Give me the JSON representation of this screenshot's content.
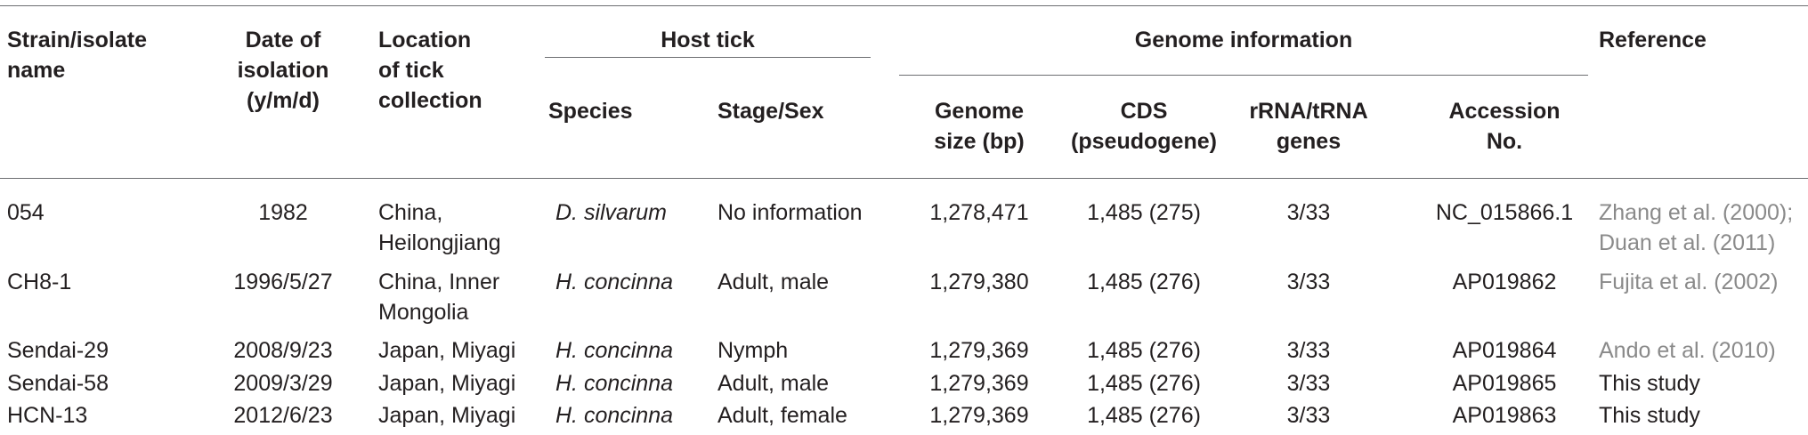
{
  "headers": {
    "strain": [
      "Strain/isolate",
      "name"
    ],
    "date": [
      "Date of",
      "isolation",
      "(y/m/d)"
    ],
    "location": [
      "Location",
      "of tick",
      "collection"
    ],
    "host_tick": "Host tick",
    "species": "Species",
    "stage": "Stage/Sex",
    "genome_info": "Genome information",
    "genome_size": [
      "Genome",
      "size (bp)"
    ],
    "cds": [
      "CDS",
      "(pseudogene)"
    ],
    "rrna": [
      "rRNA/tRNA",
      "genes"
    ],
    "accession": [
      "Accession",
      "No."
    ],
    "reference": "Reference"
  },
  "rows": [
    {
      "strain": "054",
      "date": "1982",
      "location": [
        "China,",
        "Heilongjiang"
      ],
      "species": "D. silvarum",
      "stage": "No information",
      "genome_size": "1,278,471",
      "cds": "1,485 (275)",
      "rrna": "3/33",
      "accession": "NC_015866.1",
      "reference": [
        "Zhang et al. (2000);",
        "Duan et al. (2011)"
      ]
    },
    {
      "strain": "CH8-1",
      "date": "1996/5/27",
      "location": [
        "China, Inner",
        "Mongolia"
      ],
      "species": "H. concinna",
      "stage": "Adult, male",
      "genome_size": "1,279,380",
      "cds": "1,485 (276)",
      "rrna": "3/33",
      "accession": "AP019862",
      "reference": [
        "Fujita et al. (2002)"
      ]
    },
    {
      "strain": "Sendai-29",
      "date": "2008/9/23",
      "location": [
        "Japan, Miyagi"
      ],
      "species": "H. concinna",
      "stage": "Nymph",
      "genome_size": "1,279,369",
      "cds": "1,485 (276)",
      "rrna": "3/33",
      "accession": "AP019864",
      "reference": [
        "Ando et al. (2010)"
      ]
    },
    {
      "strain": "Sendai-58",
      "date": "2009/3/29",
      "location": [
        "Japan, Miyagi"
      ],
      "species": "H. concinna",
      "stage": "Adult, male",
      "genome_size": "1,279,369",
      "cds": "1,485 (276)",
      "rrna": "3/33",
      "accession": "AP019865",
      "reference": [
        "This study"
      ]
    },
    {
      "strain": "HCN-13",
      "date": "2012/6/23",
      "location": [
        "Japan, Miyagi"
      ],
      "species": "H. concinna",
      "stage": "Adult, female",
      "genome_size": "1,279,369",
      "cds": "1,485 (276)",
      "rrna": "3/33",
      "accession": "AP019863",
      "reference": [
        "This study"
      ]
    }
  ],
  "colors": {
    "text": "#231f20",
    "rule": "#6d6e71",
    "reference_link": "#8a8a8a"
  }
}
